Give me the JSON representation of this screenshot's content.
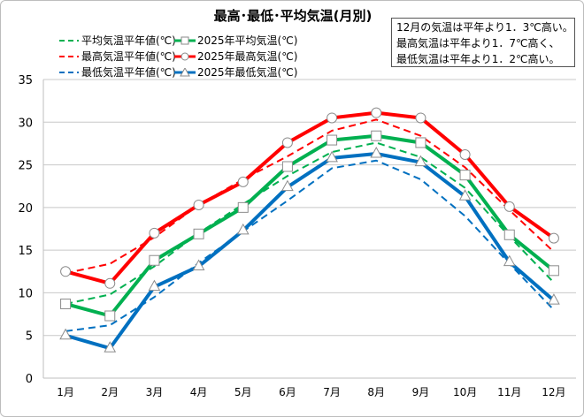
{
  "chart_data": {
    "type": "line",
    "title": "最高･最低･平均気温(月別)",
    "categories": [
      "1月",
      "2月",
      "3月",
      "4月",
      "5月",
      "6月",
      "7月",
      "8月",
      "9月",
      "10月",
      "11月",
      "12月"
    ],
    "ylim": [
      0,
      35
    ],
    "yticks": [
      0,
      5,
      10,
      15,
      20,
      25,
      30,
      35
    ],
    "grid": true,
    "legend_position": "top-left",
    "series": [
      {
        "name": "平均気温平年値(℃)",
        "color": "#00b050",
        "style": "dashed",
        "marker": "none",
        "values": [
          8.7,
          9.8,
          13.1,
          17.0,
          20.4,
          23.7,
          26.5,
          27.6,
          25.9,
          22.3,
          16.6,
          11.2
        ]
      },
      {
        "name": "最高気温平年値(℃)",
        "color": "#ff0000",
        "style": "dashed",
        "marker": "none",
        "values": [
          12.3,
          13.4,
          16.5,
          20.3,
          23.3,
          26.0,
          29.0,
          30.3,
          28.4,
          24.7,
          19.7,
          14.8
        ]
      },
      {
        "name": "最低気温平年値(℃)",
        "color": "#0070c0",
        "style": "dashed",
        "marker": "none",
        "values": [
          5.5,
          6.2,
          9.5,
          13.5,
          17.2,
          20.8,
          24.6,
          25.5,
          23.3,
          19.0,
          13.4,
          8.0
        ]
      },
      {
        "name": "2025年平均気温(℃)",
        "color": "#00b050",
        "style": "solid",
        "marker": "square",
        "values": [
          8.7,
          7.3,
          13.8,
          16.9,
          20.0,
          24.8,
          27.9,
          28.4,
          27.6,
          23.8,
          16.8,
          12.6
        ]
      },
      {
        "name": "2025年最高気温(℃)",
        "color": "#ff0000",
        "style": "solid",
        "marker": "circle",
        "values": [
          12.5,
          11.1,
          17.0,
          20.3,
          23.0,
          27.6,
          30.5,
          31.1,
          30.5,
          26.2,
          20.1,
          16.4
        ]
      },
      {
        "name": "2025年最低気温(℃)",
        "color": "#0070c0",
        "style": "solid",
        "marker": "triangle",
        "values": [
          5.0,
          3.5,
          10.7,
          13.1,
          17.3,
          22.4,
          25.8,
          26.3,
          25.3,
          21.3,
          13.6,
          9.1
        ]
      }
    ],
    "annotation": [
      "12月の気温は平年より1．3℃高い。",
      "最高気温は平年より1．7℃高く、",
      "最低気温は平年より1．2℃高い。"
    ]
  }
}
